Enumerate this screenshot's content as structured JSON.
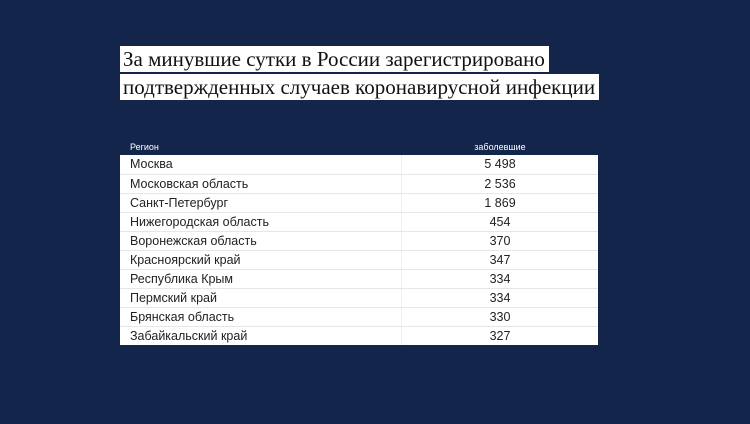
{
  "title": {
    "line1": "За минувшие сутки в России зарегистрировано",
    "line2": "подтвержденных случаев коронавирусной инфекции"
  },
  "chart_data": {
    "type": "table",
    "columns": [
      "Регион",
      "заболевшие"
    ],
    "rows": [
      {
        "region": "Москва",
        "cases": "5 498"
      },
      {
        "region": "Московская область",
        "cases": "2 536"
      },
      {
        "region": "Санкт-Петербург",
        "cases": "1 869"
      },
      {
        "region": "Нижегородская область",
        "cases": "454"
      },
      {
        "region": "Воронежская область",
        "cases": "370"
      },
      {
        "region": "Красноярский край",
        "cases": "347"
      },
      {
        "region": "Республика Крым",
        "cases": "334"
      },
      {
        "region": "Пермский край",
        "cases": "334"
      },
      {
        "region": "Брянская область",
        "cases": "330"
      },
      {
        "region": "Забайкальский край",
        "cases": "327"
      }
    ]
  },
  "colors": {
    "background": "#13254a",
    "table_background": "#ffffff",
    "text": "#222222"
  }
}
